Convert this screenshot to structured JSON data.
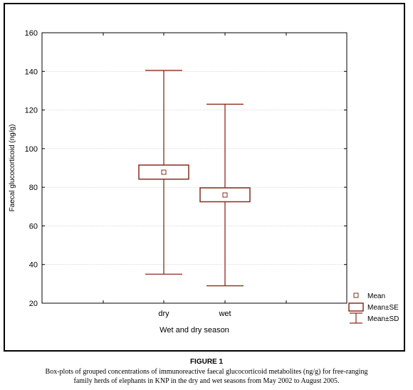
{
  "chart_data": {
    "type": "box",
    "xlabel": "Wet and dry season",
    "ylabel": "Faecal glucocorticoid (ng/g)",
    "ylim": [
      20,
      160
    ],
    "yticks": [
      20,
      40,
      60,
      80,
      100,
      120,
      140,
      160
    ],
    "grid": true,
    "categories": [
      "dry",
      "wet"
    ],
    "series": [
      {
        "category": "dry",
        "mean": 87.8,
        "mean_minus_se": 84.2,
        "mean_plus_se": 91.5,
        "mean_minus_sd": 35.0,
        "mean_plus_sd": 140.5
      },
      {
        "category": "wet",
        "mean": 76.0,
        "mean_minus_se": 72.5,
        "mean_plus_se": 79.7,
        "mean_minus_sd": 29.0,
        "mean_plus_sd": 123.0
      }
    ],
    "legend": {
      "position": "bottom-right",
      "items": [
        {
          "symbol": "square-point",
          "label": "Mean"
        },
        {
          "symbol": "box",
          "label": "Mean±SE"
        },
        {
          "symbol": "whisker",
          "label": "Mean±SD"
        }
      ]
    },
    "colors": {
      "box": "#8b2a1e",
      "grid": "#c8c8c8",
      "axis": "#000000"
    }
  },
  "caption": {
    "title": "FIGURE 1",
    "line1": "Box-plots of grouped concentrations of immunoreactive faecal glucocorticoid  metabolites (ng/g) for free-ranging",
    "line2": "family herds of elephants in KNP in the dry and  wet seasons from May 2002 to August 2005."
  }
}
